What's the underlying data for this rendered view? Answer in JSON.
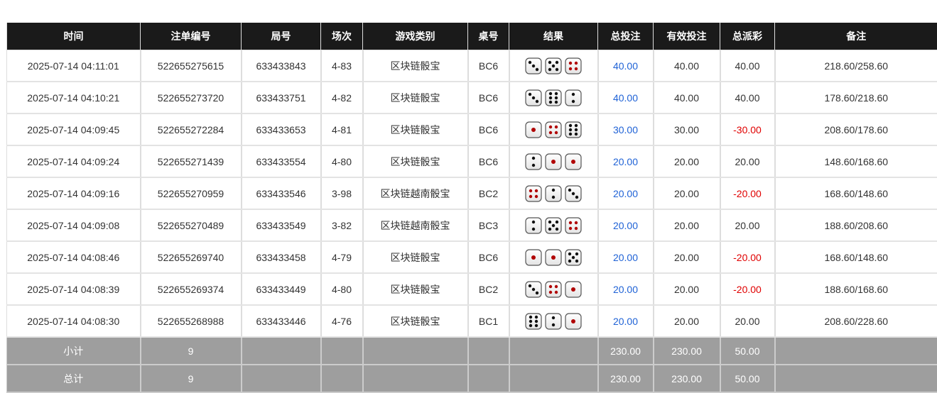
{
  "colors": {
    "header_bg": "#1a1a1a",
    "footer_bg": "#9e9e9e",
    "bet": "#1f62d6",
    "negative": "#e00000",
    "pip_black": "#111111",
    "pip_red": "#b00000"
  },
  "headers": [
    "时间",
    "注单编号",
    "局号",
    "场次",
    "游戏类别",
    "桌号",
    "结果",
    "总投注",
    "有效投注",
    "总派彩",
    "备注"
  ],
  "rows": [
    {
      "time": "2025-07-14 04:11:01",
      "order": "522655275615",
      "round": "633433843",
      "session": "4-83",
      "game": "区块链骰宝",
      "table": "BC6",
      "dice": [
        3,
        5,
        4
      ],
      "bet": "40.00",
      "valid": "40.00",
      "payout": "40.00",
      "note": "218.60/258.60"
    },
    {
      "time": "2025-07-14 04:10:21",
      "order": "522655273720",
      "round": "633433751",
      "session": "4-82",
      "game": "区块链骰宝",
      "table": "BC6",
      "dice": [
        3,
        6,
        2
      ],
      "bet": "40.00",
      "valid": "40.00",
      "payout": "40.00",
      "note": "178.60/218.60"
    },
    {
      "time": "2025-07-14 04:09:45",
      "order": "522655272284",
      "round": "633433653",
      "session": "4-81",
      "game": "区块链骰宝",
      "table": "BC6",
      "dice": [
        1,
        4,
        6
      ],
      "bet": "30.00",
      "valid": "30.00",
      "payout": "-30.00",
      "note": "208.60/178.60"
    },
    {
      "time": "2025-07-14 04:09:24",
      "order": "522655271439",
      "round": "633433554",
      "session": "4-80",
      "game": "区块链骰宝",
      "table": "BC6",
      "dice": [
        2,
        1,
        1
      ],
      "bet": "20.00",
      "valid": "20.00",
      "payout": "20.00",
      "note": "148.60/168.60"
    },
    {
      "time": "2025-07-14 04:09:16",
      "order": "522655270959",
      "round": "633433546",
      "session": "3-98",
      "game": "区块链越南骰宝",
      "table": "BC2",
      "dice": [
        4,
        2,
        3
      ],
      "bet": "20.00",
      "valid": "20.00",
      "payout": "-20.00",
      "note": "168.60/148.60"
    },
    {
      "time": "2025-07-14 04:09:08",
      "order": "522655270489",
      "round": "633433549",
      "session": "3-82",
      "game": "区块链越南骰宝",
      "table": "BC3",
      "dice": [
        2,
        5,
        4
      ],
      "bet": "20.00",
      "valid": "20.00",
      "payout": "20.00",
      "note": "188.60/208.60"
    },
    {
      "time": "2025-07-14 04:08:46",
      "order": "522655269740",
      "round": "633433458",
      "session": "4-79",
      "game": "区块链骰宝",
      "table": "BC6",
      "dice": [
        1,
        1,
        5
      ],
      "bet": "20.00",
      "valid": "20.00",
      "payout": "-20.00",
      "note": "168.60/148.60"
    },
    {
      "time": "2025-07-14 04:08:39",
      "order": "522655269374",
      "round": "633433449",
      "session": "4-80",
      "game": "区块链骰宝",
      "table": "BC2",
      "dice": [
        3,
        4,
        1
      ],
      "bet": "20.00",
      "valid": "20.00",
      "payout": "-20.00",
      "note": "188.60/168.60"
    },
    {
      "time": "2025-07-14 04:08:30",
      "order": "522655268988",
      "round": "633433446",
      "session": "4-76",
      "game": "区块链骰宝",
      "table": "BC1",
      "dice": [
        6,
        2,
        1
      ],
      "bet": "20.00",
      "valid": "20.00",
      "payout": "20.00",
      "note": "208.60/228.60"
    }
  ],
  "subtotal": {
    "label": "小计",
    "count": "9",
    "bet": "230.00",
    "valid": "230.00",
    "payout": "50.00"
  },
  "total": {
    "label": "总计",
    "count": "9",
    "bet": "230.00",
    "valid": "230.00",
    "payout": "50.00"
  }
}
